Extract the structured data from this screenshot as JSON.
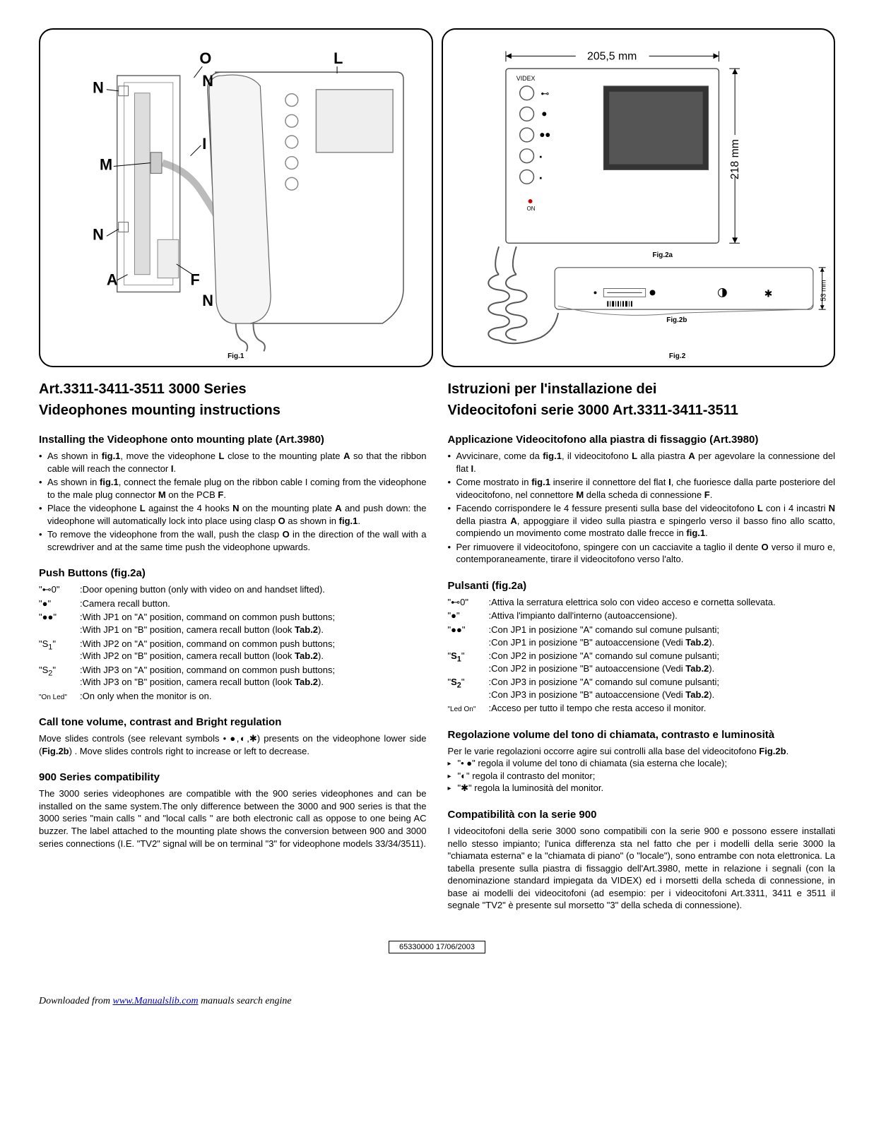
{
  "fig1": {
    "label": "Fig.1",
    "callouts": [
      "O",
      "L",
      "N",
      "N",
      "I",
      "M",
      "N",
      "A",
      "F",
      "N"
    ]
  },
  "fig2": {
    "label": "Fig.2",
    "label_a": "Fig.2a",
    "label_b": "Fig.2b",
    "width_dim": "205,5 mm",
    "height_dim": "218 mm",
    "side_dim": "53 mm",
    "brand": "VIDEX",
    "on_label": "ON"
  },
  "left": {
    "title1": "Art.3311-3411-3511 3000 Series",
    "title2": "Videophones mounting instructions",
    "sec1_title": "Installing the Videophone onto mounting plate (Art.3980)",
    "sec1_items": [
      "As shown in <b>fig.1</b>, move the videophone <b>L</b> close to the mounting plate <b>A</b> so that the ribbon cable will reach the connector <b>I</b>.",
      "As shown in <b>fig.1</b>, connect the female plug on the ribbon cable I coming from the videophone to the male plug connector <b>M</b> on the PCB <b>F</b>.",
      "Place the videophone <b>L</b> against the 4 hooks <b>N</b> on the mounting plate <b>A</b> and push down:  the videophone will automatically lock into place using clasp <b>O</b> as shown in <b>fig.1</b>.",
      "To remove the videophone from the wall, push the clasp <b>O</b> in the direction of the wall with a screwdriver and at the same time push the videophone upwards."
    ],
    "sec2_title": "Push Buttons (fig.2a)",
    "buttons": [
      {
        "sym": "\"⊷0\"",
        "desc": ":Door opening button (only with video on and handset lifted)."
      },
      {
        "sym": "\"●\"",
        "desc": ":Camera recall button."
      },
      {
        "sym": "\"●●\"",
        "desc": ":With JP1 on  \"A\" position, command on common push buttons;<br>:With JP1 on  \"B\" position, camera recall button (look <b>Tab.2</b>)."
      },
      {
        "sym": "\"S<sub>1</sub>\"",
        "desc": ":With JP2 on  \"A\" position, command on common push buttons;<br>:With JP2 on  \"B\" position, camera recall button (look <b>Tab.2</b>)."
      },
      {
        "sym": "\"S<sub>2</sub>\"",
        "desc": ":With JP3 on  \"A\" position, command on common push buttons;<br>:With JP3 on  \"B\" position, camera recall button (look <b>Tab.2</b>)."
      },
      {
        "sym": "<span class='small-sym'>\"On Led\"</span>",
        "desc": ":On only when the monitor is on."
      }
    ],
    "sec3_title": "Call tone volume, contrast and Bright regulation",
    "sec3_text": "Move slides controls (see relevant symbols  • ●,◐,✱) presents on the videophone lower side (<b>Fig.2b</b>) . Move slides controls right to increase or left to decrease.",
    "sec4_title": "900 Series compatibility",
    "sec4_text": "The 3000 series videophones are compatible with the 900 series videophones and can be installed on the same system.The only difference between the 3000 and 900 series is that the 3000 series \"main calls \" and \"local calls \" are both electronic call as oppose to one being AC buzzer. The label attached to the mounting plate shows the conversion between 900 and 3000 series connections (I.E. \"TV2\" signal will be on terminal \"3\" for videophone models 33/34/3511)."
  },
  "right": {
    "title1": "Istruzioni per l'installazione dei",
    "title2": "Videocitofoni serie 3000 Art.3311-3411-3511",
    "sec1_title": "Applicazione Videocitofono  alla piastra di fissaggio (Art.3980)",
    "sec1_items": [
      "Avvicinare, come da <b>fig.1</b>, il videocitofono <b>L</b> alla piastra <b>A</b> per agevolare la connessione del flat <b>I</b>.",
      "Come mostrato in <b>fig.1</b> inserire il  connettore del flat <b>I</b>, che fuoriesce dalla parte posteriore del videocitofono, nel connettore <b>M</b> della scheda di connessione <b>F</b>.",
      "Facendo corrispondere le 4 fessure presenti sulla base del videocitofono <b>L</b> con i 4 incastri <b>N</b> della piastra <b>A</b>, appoggiare il video sulla piastra e spingerlo verso il basso fino allo scatto, compiendo un movimento come mostrato dalle frecce in <b>fig.1</b>.",
      "Per rimuovere il videocitofono, spingere con un cacciavite a taglio il dente <b>O</b> verso il muro  e, contemporaneamente, tirare  il videocitofono verso l'alto."
    ],
    "sec2_title": "Pulsanti (fig.2a)",
    "buttons": [
      {
        "sym": "\"⊷0\"",
        "desc": ":Attiva la serratura elettrica solo con video acceso e cornetta sollevata."
      },
      {
        "sym": "\"●\"",
        "desc": ":Attiva l'impianto dall'interno (autoaccensione)."
      },
      {
        "sym": "\"●●\"",
        "desc": ":Con JP1 in posizione \"A\" comando sul comune pulsanti;<br>:Con JP1 in posizione \"B\" autoaccensione (Vedi <b>Tab.2</b>)."
      },
      {
        "sym": "\"<b>S<sub>1</sub></b>\"",
        "desc": ":Con JP2 in posizione \"A\" comando sul comune pulsanti;<br>:Con JP2 in posizione \"B\" autoaccensione (Vedi <b>Tab.2</b>)."
      },
      {
        "sym": "\"<b>S<sub>2</sub></b>\"",
        "desc": ":Con JP3 in posizione \"A\" comando sul comune pulsanti;<br>:Con JP3 in posizione \"B\" autoaccensione (Vedi <b>Tab.2</b>)."
      },
      {
        "sym": "<span class='small-sym'>\"Led On\"</span>",
        "desc": ":Acceso per tutto il tempo che resta acceso il monitor."
      }
    ],
    "sec3_title": "Regolazione volume del tono di chiamata, contrasto e luminosità",
    "sec3_text": "Per le varie regolazioni occorre agire sui controlli alla base del videocitofono <b>Fig.2b</b>.",
    "sec3_arrows": [
      "\"•  ●\" regola  il volume del tono di chiamata (sia esterna che locale);",
      "\"◐\" regola il contrasto del monitor;",
      "\"✱\" regola la luminosità del monitor."
    ],
    "sec4_title": "Compatibilità con la serie 900",
    "sec4_text": "I videocitofoni della serie 3000 sono compatibili con la serie 900 e possono essere installati nello stesso impianto; l'unica differenza sta nel fatto che per i modelli della serie 3000 la \"chiamata esterna\" e la \"chiamata di piano\" (o \"locale\"), sono entrambe con nota elettronica. La tabella presente sulla piastra di fissaggio dell'Art.3980, mette in relazione i segnali (con la denominazione standard impiegata da VIDEX) ed i morsetti della scheda di connessione, in base ai modelli dei videocitofoni (ad esempio: per i videocitofoni  Art.3311, 3411 e 3511 il segnale \"TV2\" è presente sul morsetto \"3\" della scheda di connessione)."
  },
  "footer": "65330000 17/06/2003",
  "download_prefix": "Downloaded from ",
  "download_link": "www.Manualslib.com",
  "download_suffix": "  manuals search engine"
}
